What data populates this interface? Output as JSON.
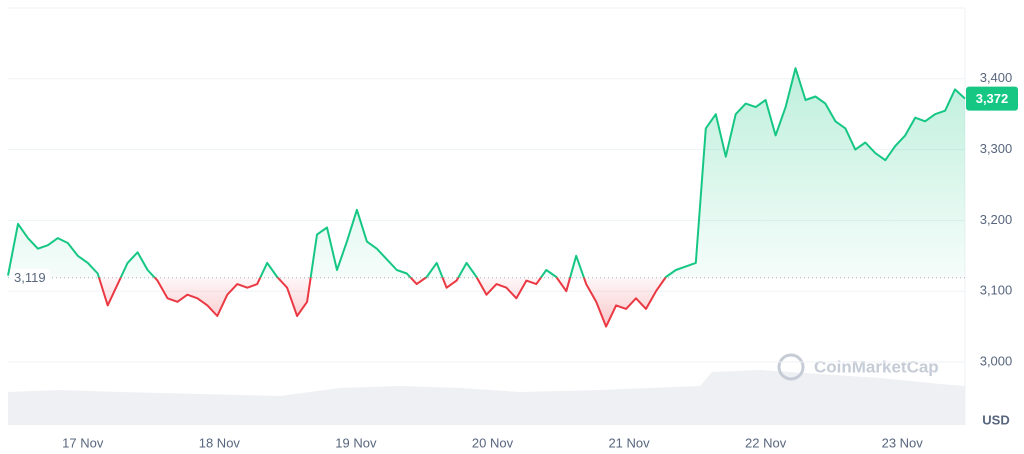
{
  "chart_data": {
    "type": "line",
    "values": [
      3122,
      3195,
      3175,
      3160,
      3165,
      3175,
      3168,
      3150,
      3140,
      3125,
      3080,
      3110,
      3140,
      3155,
      3130,
      3115,
      3090,
      3085,
      3095,
      3090,
      3080,
      3065,
      3095,
      3110,
      3105,
      3110,
      3140,
      3120,
      3105,
      3065,
      3085,
      3180,
      3190,
      3130,
      3170,
      3215,
      3170,
      3160,
      3145,
      3130,
      3125,
      3110,
      3120,
      3140,
      3105,
      3115,
      3140,
      3120,
      3095,
      3110,
      3105,
      3090,
      3115,
      3110,
      3130,
      3120,
      3100,
      3150,
      3110,
      3085,
      3050,
      3080,
      3075,
      3090,
      3075,
      3100,
      3120,
      3130,
      3135,
      3140,
      3330,
      3350,
      3290,
      3350,
      3365,
      3360,
      3370,
      3320,
      3360,
      3415,
      3370,
      3375,
      3365,
      3340,
      3330,
      3300,
      3310,
      3295,
      3285,
      3305,
      3320,
      3345,
      3340,
      3350,
      3355,
      3385,
      3372
    ],
    "current_price_label": "3,372",
    "baseline": {
      "value": 3119,
      "label": "3,119"
    },
    "up_color": "#16c784",
    "down_color": "#ea3943",
    "ylim": [
      2911,
      3500
    ],
    "yticks": [
      {
        "value": 3000,
        "label": "3,000"
      },
      {
        "value": 3100,
        "label": "3,100"
      },
      {
        "value": 3200,
        "label": "3,200"
      },
      {
        "value": 3300,
        "label": "3,300"
      },
      {
        "value": 3400,
        "label": "3,400"
      }
    ],
    "xlim": [
      0,
      96
    ],
    "xticks": [
      {
        "value": 7.5,
        "label": "17 Nov"
      },
      {
        "value": 21.2,
        "label": "18 Nov"
      },
      {
        "value": 34.9,
        "label": "19 Nov"
      },
      {
        "value": 48.6,
        "label": "20 Nov"
      },
      {
        "value": 62.3,
        "label": "21 Nov"
      },
      {
        "value": 76.0,
        "label": "22 Nov"
      },
      {
        "value": 89.7,
        "label": "23 Nov"
      }
    ],
    "currency": "USD",
    "watermark": "CoinMarketCap",
    "grid": true
  }
}
